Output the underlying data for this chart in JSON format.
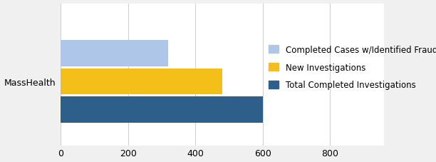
{
  "categories": [
    "MassHealth"
  ],
  "series": [
    {
      "label": "Completed Cases w/Identified Fraud",
      "value": 320,
      "color": "#aec6e8"
    },
    {
      "label": "New Investigations",
      "value": 480,
      "color": "#f5bf19"
    },
    {
      "label": "Total Completed Investigations",
      "value": 600,
      "color": "#2e5f8a"
    }
  ],
  "xlim": [
    0,
    960
  ],
  "xticks": [
    0,
    200,
    400,
    600,
    800
  ],
  "ylabel": "MassHealth",
  "background_color": "#f0f0f0",
  "plot_bg_color": "#ffffff",
  "bar_height": 0.28,
  "bar_spacing": 0.3,
  "legend_fontsize": 8.5,
  "tick_fontsize": 9,
  "grid_color": "#d0d0d0"
}
